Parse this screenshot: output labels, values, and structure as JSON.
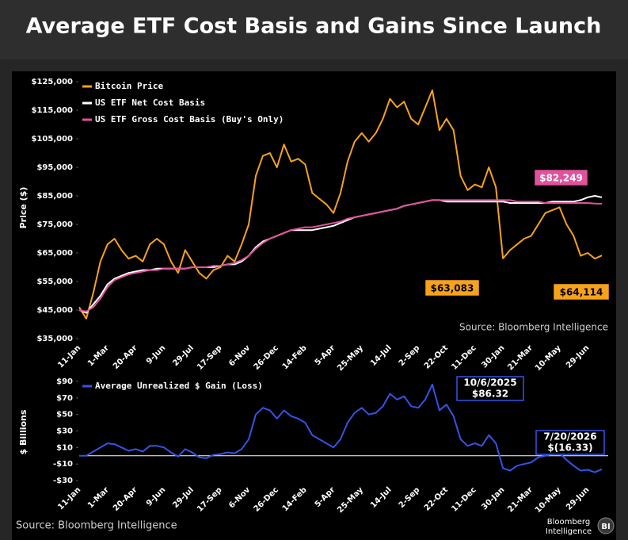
{
  "title": "Average ETF Cost Basis and Gains Since Launch",
  "chart_data": [
    {
      "type": "line",
      "y_label": "Price ($)",
      "source": "Source: Bloomberg Intelligence",
      "categories": [
        "11-Jan",
        null,
        null,
        null,
        "1-Mar",
        null,
        null,
        null,
        "20-Apr",
        null,
        null,
        null,
        "9-Jun",
        null,
        null,
        null,
        "29-Jul",
        null,
        null,
        null,
        "17-Sep",
        null,
        null,
        null,
        "6-Nov",
        null,
        null,
        null,
        "26-Dec",
        null,
        null,
        null,
        "14-Feb",
        null,
        null,
        null,
        "5-Apr",
        null,
        null,
        null,
        "25-May",
        null,
        null,
        null,
        "14-Jul",
        null,
        null,
        null,
        "2-Sep",
        null,
        null,
        null,
        "22-Oct",
        null,
        null,
        null,
        "11-Dec",
        null,
        null,
        null,
        "30-Jan",
        null,
        null,
        null,
        "21-Mar",
        null,
        null,
        null,
        "10-May",
        null,
        null,
        null,
        "29-Jun",
        null,
        null
      ],
      "ylim": [
        35000,
        125000
      ],
      "yticks": [
        {
          "value": 35000,
          "label": "$35,000"
        },
        {
          "value": 45000,
          "label": "$45,000"
        },
        {
          "value": 55000,
          "label": "$55,000"
        },
        {
          "value": 65000,
          "label": "$65,000"
        },
        {
          "value": 75000,
          "label": "$75,000"
        },
        {
          "value": 85000,
          "label": "$85,000"
        },
        {
          "value": 95000,
          "label": "$95,000"
        },
        {
          "value": 105000,
          "label": "$105,000"
        },
        {
          "value": 115000,
          "label": "$115,000"
        },
        {
          "value": 125000,
          "label": "$125,000"
        }
      ],
      "series": [
        {
          "name": "Bitcoin Price",
          "color": "#f7a21b",
          "values": [
            46000,
            42000,
            51000,
            62000,
            68000,
            70000,
            66000,
            63000,
            64000,
            62000,
            68000,
            70000,
            68000,
            62000,
            58000,
            66000,
            62000,
            58000,
            56000,
            59000,
            60000,
            64000,
            62000,
            68000,
            75000,
            92000,
            99000,
            100000,
            95000,
            103000,
            97000,
            98000,
            96000,
            86000,
            84000,
            82000,
            79000,
            86000,
            97000,
            104000,
            107000,
            104000,
            107000,
            112000,
            119000,
            116000,
            118000,
            112000,
            110000,
            116000,
            122000,
            108000,
            112000,
            108000,
            92000,
            87000,
            89000,
            88000,
            95000,
            88000,
            63083,
            66000,
            68000,
            70000,
            71000,
            75000,
            79000,
            80000,
            81000,
            75000,
            71000,
            64000,
            65000,
            63000,
            64114
          ]
        },
        {
          "name": "US ETF Net Cost Basis",
          "color": "#ffffff",
          "values": [
            45000,
            44000,
            47000,
            50000,
            54000,
            56000,
            57000,
            58000,
            58500,
            59000,
            59000,
            59500,
            59500,
            59500,
            59500,
            59500,
            60000,
            60000,
            60000,
            60000,
            60500,
            61000,
            61000,
            62000,
            64000,
            67000,
            69000,
            70000,
            71000,
            72000,
            73000,
            73000,
            73000,
            73000,
            73500,
            74000,
            74500,
            75500,
            76500,
            77500,
            78000,
            78500,
            79000,
            79500,
            80000,
            80500,
            81500,
            82000,
            82500,
            83000,
            83500,
            83500,
            83000,
            83000,
            83000,
            83000,
            83000,
            83000,
            83000,
            83000,
            83000,
            82500,
            82500,
            82500,
            82500,
            82500,
            82500,
            83000,
            83000,
            83000,
            83000,
            83500,
            84500,
            85000,
            84500
          ]
        },
        {
          "name": "US ETF Gross Cost Basis (Buy's Only)",
          "color": "#e0529c",
          "values": [
            45000,
            44500,
            46000,
            49000,
            53000,
            55500,
            56500,
            57500,
            58000,
            58500,
            59000,
            59000,
            59500,
            59500,
            59500,
            59500,
            60000,
            60000,
            60000,
            60500,
            60500,
            61000,
            61500,
            62500,
            64000,
            66500,
            68500,
            70000,
            71000,
            72000,
            73000,
            73500,
            74000,
            74000,
            74500,
            75000,
            75500,
            76000,
            77000,
            77500,
            78000,
            78500,
            79000,
            79500,
            80000,
            80500,
            81500,
            82000,
            82500,
            83000,
            83500,
            83500,
            83500,
            83500,
            83500,
            83500,
            83500,
            83500,
            83500,
            83500,
            83500,
            83500,
            83000,
            83000,
            83000,
            83000,
            82500,
            82500,
            82500,
            82500,
            82500,
            82500,
            82500,
            82300,
            82249
          ]
        }
      ],
      "annotations": [
        "$82,249",
        "$63,083",
        "$64,114"
      ]
    },
    {
      "type": "line",
      "y_label": "$ Billions",
      "source": "Source: Bloomberg Intelligence",
      "categories": [
        "11-Jan",
        null,
        null,
        null,
        "1-Mar",
        null,
        null,
        null,
        "20-Apr",
        null,
        null,
        null,
        "9-Jun",
        null,
        null,
        null,
        "29-Jul",
        null,
        null,
        null,
        "17-Sep",
        null,
        null,
        null,
        "6-Nov",
        null,
        null,
        null,
        "26-Dec",
        null,
        null,
        null,
        "14-Feb",
        null,
        null,
        null,
        "5-Apr",
        null,
        null,
        null,
        "25-May",
        null,
        null,
        null,
        "14-Jul",
        null,
        null,
        null,
        "2-Sep",
        null,
        null,
        null,
        "22-Oct",
        null,
        null,
        null,
        "11-Dec",
        null,
        null,
        null,
        "30-Jan",
        null,
        null,
        null,
        "21-Mar",
        null,
        null,
        null,
        "10-May",
        null,
        null,
        null,
        "29-Jun",
        null,
        null
      ],
      "ylim": [
        -30,
        90
      ],
      "yticks": [
        {
          "value": -30,
          "label": "-$30"
        },
        {
          "value": -10,
          "label": "-$10"
        },
        {
          "value": 10,
          "label": "$10"
        },
        {
          "value": 30,
          "label": "$30"
        },
        {
          "value": 50,
          "label": "$50"
        },
        {
          "value": 70,
          "label": "$70"
        },
        {
          "value": 90,
          "label": "$90"
        }
      ],
      "series": [
        {
          "name": "Average Unrealized $ Gain (Loss)",
          "color": "#3553e6",
          "values": [
            0,
            0,
            5,
            10,
            15,
            14,
            10,
            6,
            8,
            5,
            12,
            12,
            10,
            4,
            -1,
            8,
            4,
            -2,
            -3,
            1,
            2,
            4,
            3,
            8,
            20,
            50,
            58,
            55,
            45,
            55,
            48,
            45,
            40,
            25,
            20,
            15,
            10,
            20,
            40,
            52,
            58,
            50,
            52,
            60,
            75,
            68,
            72,
            60,
            58,
            68,
            86.32,
            55,
            62,
            48,
            20,
            12,
            15,
            12,
            25,
            15,
            -15,
            -18,
            -12,
            -10,
            -8,
            -2,
            0,
            2,
            3,
            -5,
            -12,
            -18,
            -17,
            -20,
            -16.33
          ]
        }
      ],
      "annotations": [
        [
          "10/6/2025",
          "$86.32"
        ],
        [
          "7/20/2026",
          "$(16.33)"
        ]
      ]
    }
  ],
  "logo": [
    "Bloomberg",
    "Intelligence"
  ],
  "logo_badge": "BI"
}
